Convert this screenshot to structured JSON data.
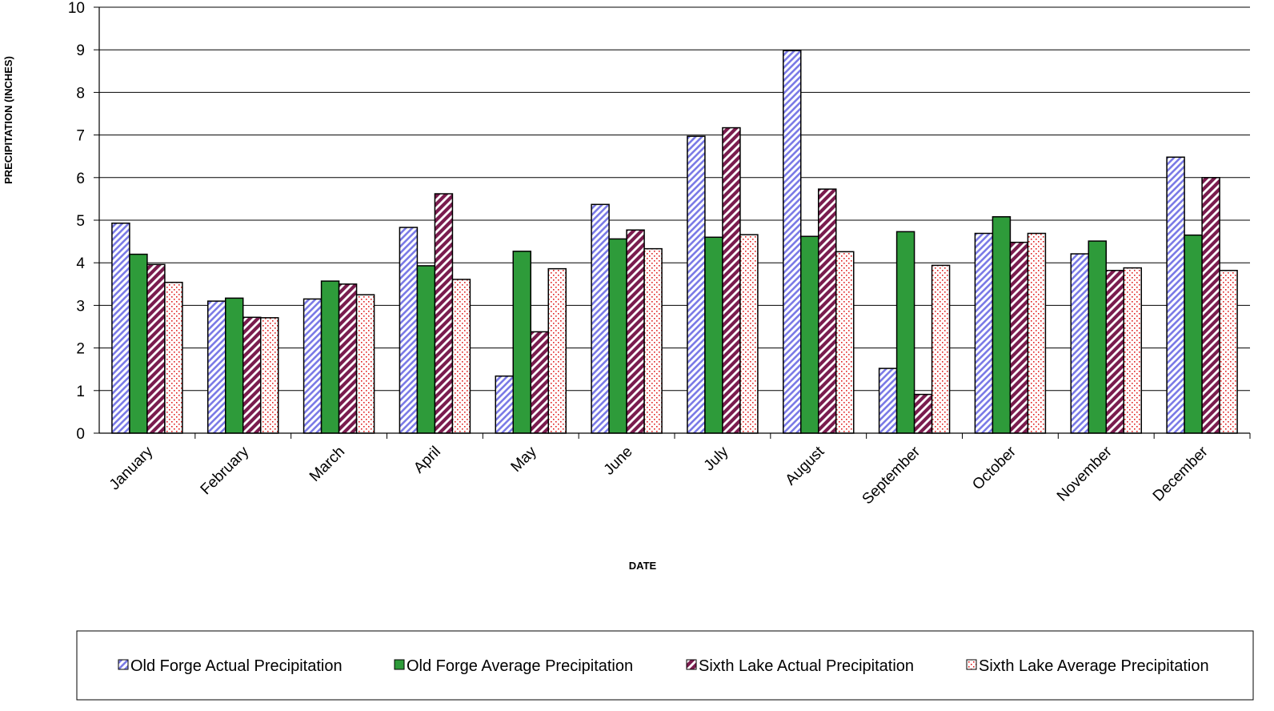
{
  "chart_data": {
    "type": "bar",
    "title": "",
    "xlabel": "DATE",
    "ylabel": "PRECIPITATION (INCHES)",
    "ylim": [
      0,
      10
    ],
    "yticks": [
      0,
      1,
      2,
      3,
      4,
      5,
      6,
      7,
      8,
      9,
      10
    ],
    "grid": true,
    "legend_position": "bottom",
    "categories": [
      "January",
      "February",
      "March",
      "April",
      "May",
      "June",
      "July",
      "August",
      "September",
      "October",
      "November",
      "December"
    ],
    "series": [
      {
        "name": "Old Forge Actual Precipitation",
        "pattern": "diagonal-stripes",
        "color": "#7b7be6",
        "values": [
          4.93,
          3.1,
          3.15,
          4.83,
          1.34,
          5.37,
          6.97,
          8.98,
          1.52,
          4.69,
          4.21,
          6.48
        ]
      },
      {
        "name": "Old Forge Average Precipitation",
        "pattern": "solid",
        "color": "#2e9b3a",
        "values": [
          4.2,
          3.17,
          3.57,
          3.93,
          4.27,
          4.56,
          4.6,
          4.62,
          4.73,
          5.08,
          4.51,
          4.65
        ]
      },
      {
        "name": "Sixth Lake Actual Precipitation",
        "pattern": "wide-diagonal-stripes",
        "color": "#7a1c4e",
        "values": [
          3.96,
          2.72,
          3.5,
          5.62,
          2.38,
          4.77,
          7.17,
          5.73,
          0.91,
          4.48,
          3.82,
          6.0
        ]
      },
      {
        "name": "Sixth Lake Average Precipitation",
        "pattern": "dots",
        "color": "#e02020",
        "values": [
          3.54,
          2.71,
          3.25,
          3.61,
          3.86,
          4.33,
          4.66,
          4.26,
          3.94,
          4.69,
          3.88,
          3.82
        ]
      }
    ]
  }
}
